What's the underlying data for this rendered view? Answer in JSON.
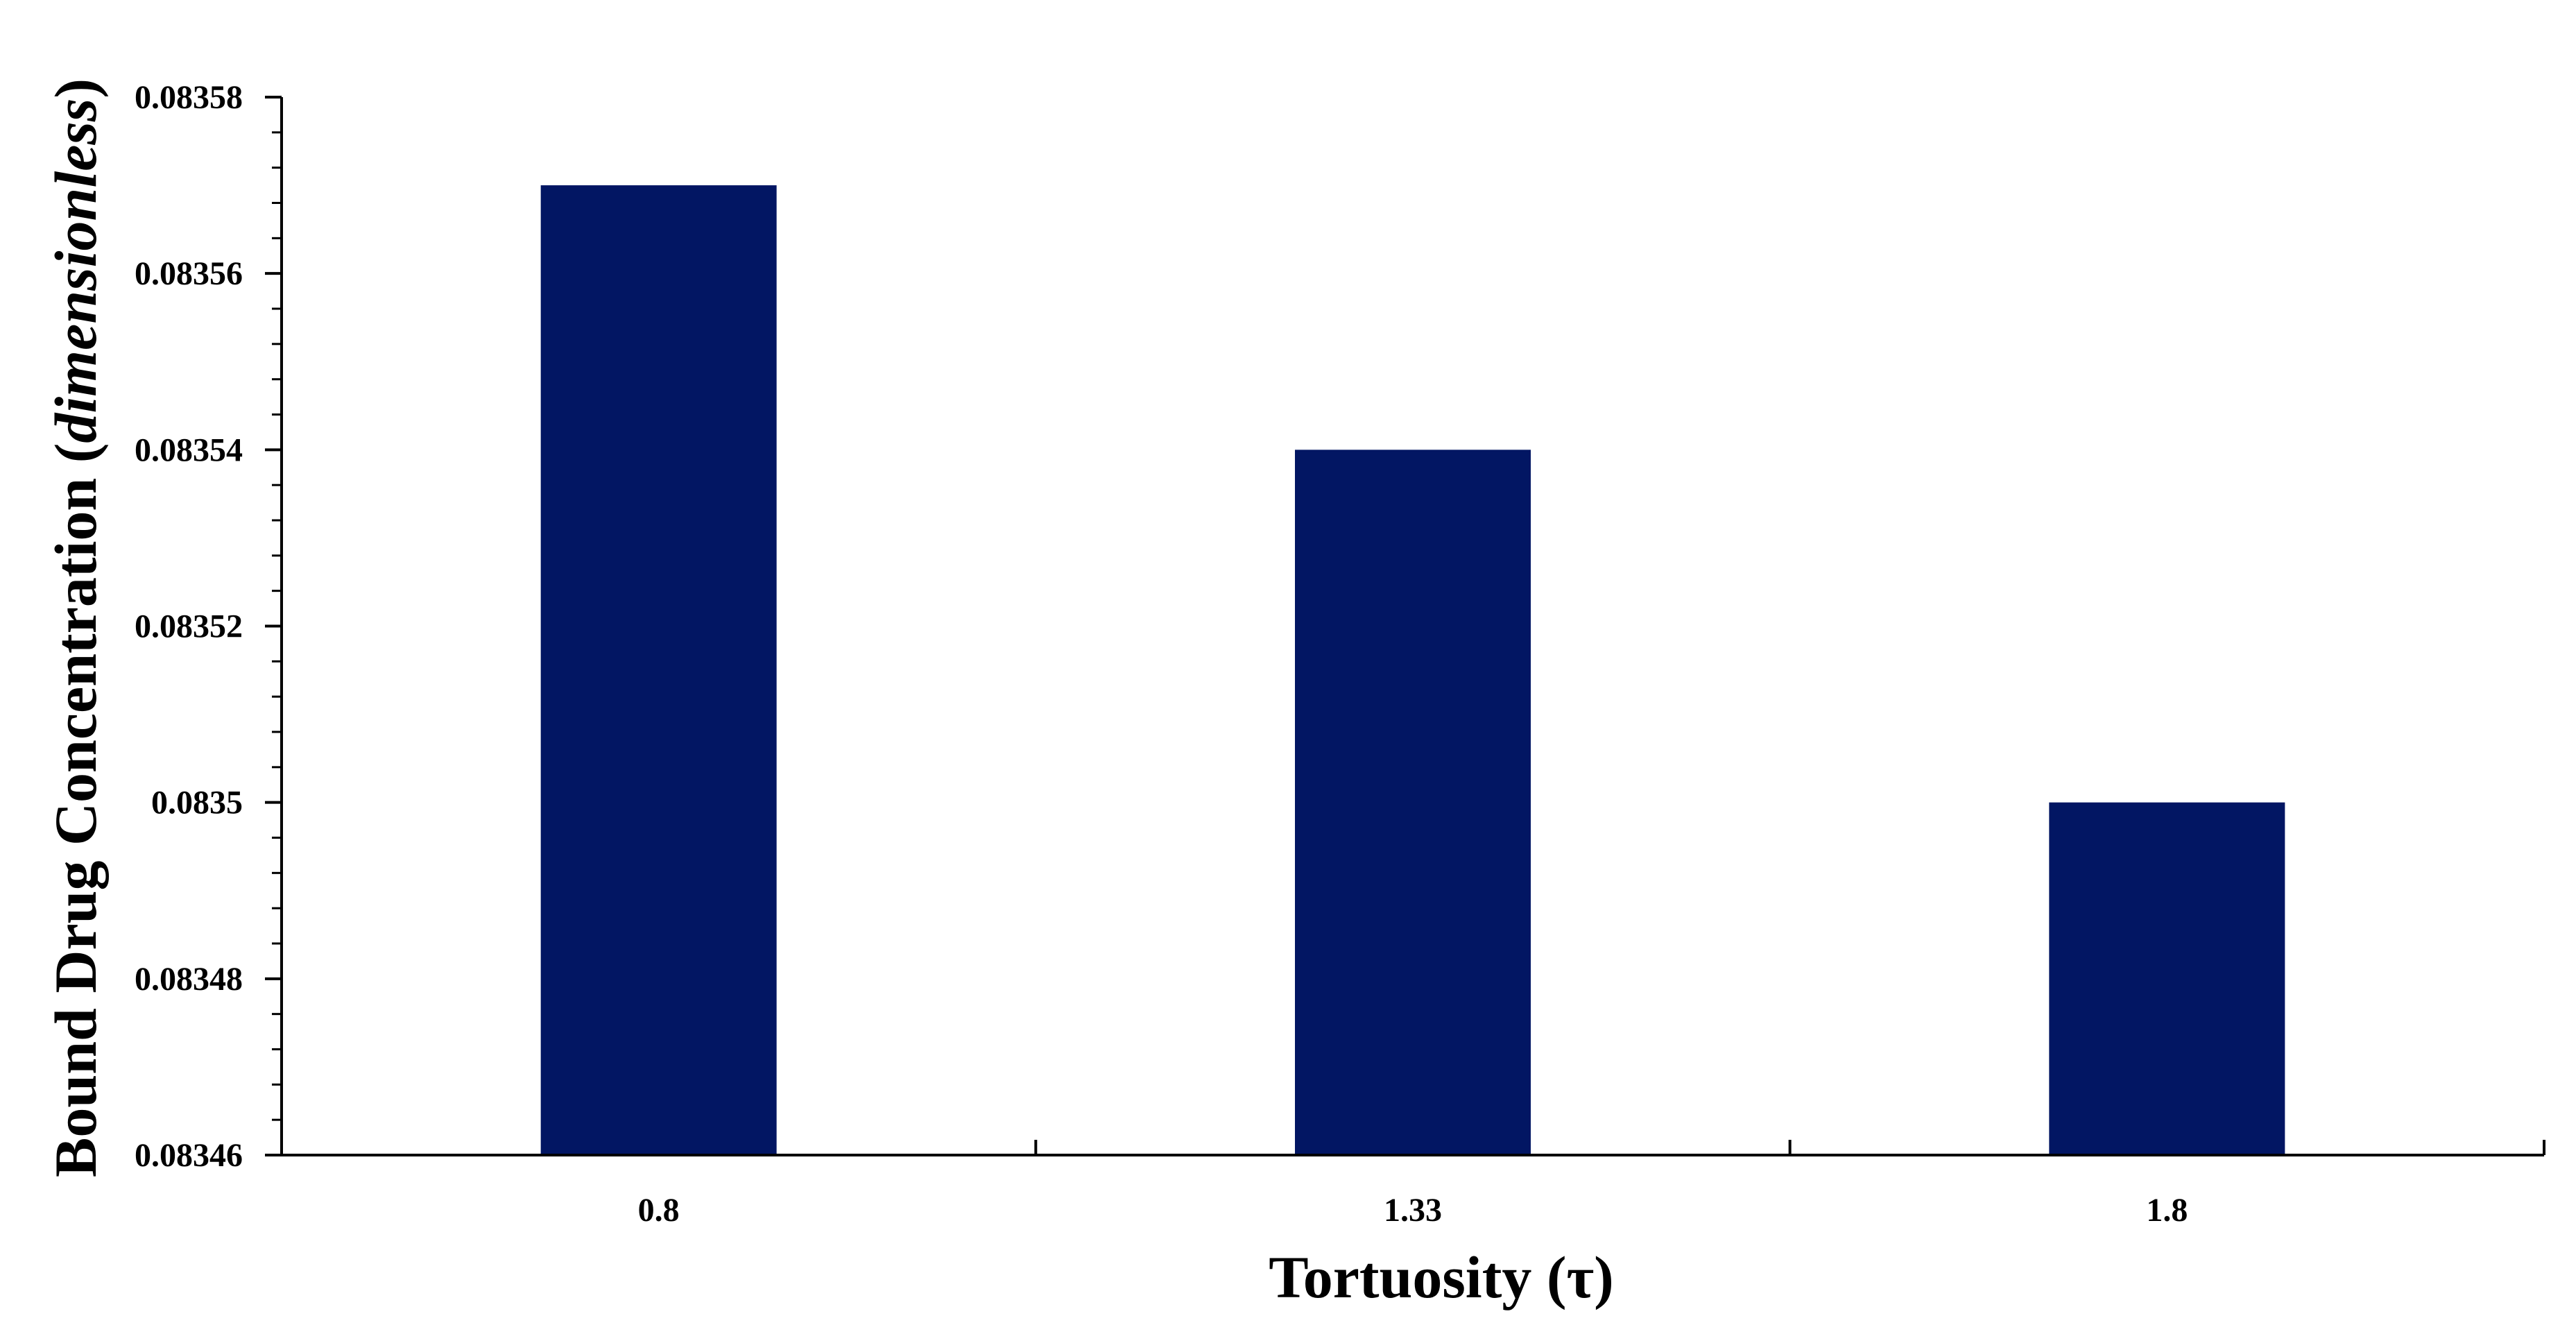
{
  "chart_data": {
    "type": "bar",
    "categories": [
      "0.8",
      "1.33",
      "1.8"
    ],
    "values": [
      0.08357,
      0.08354,
      0.0835
    ],
    "xlabel": "Tortuosity (τ)",
    "ylabel": {
      "main": "Bound Drug Concentration (",
      "italic": "dimensionless",
      "close": ")"
    },
    "ylim": [
      0.08346,
      0.08358
    ],
    "yticks": [
      "0.08346",
      "0.08348",
      "0.0835",
      "0.08352",
      "0.08354",
      "0.08356",
      "0.08358"
    ],
    "grid": false,
    "legend": "none",
    "colors": {
      "bar": "#021663",
      "axis": "#000000"
    }
  }
}
